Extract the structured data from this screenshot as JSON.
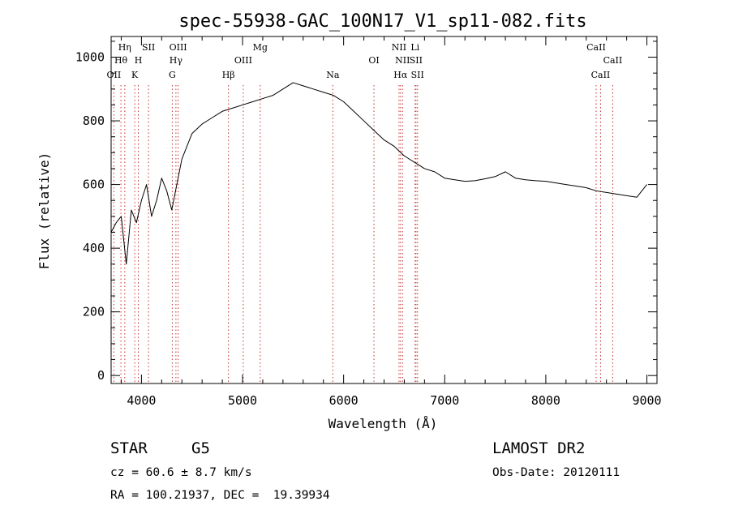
{
  "chart_data": {
    "type": "line",
    "title": "spec-55938-GAC_100N17_V1_sp11-082.fits",
    "xlabel": "Wavelength (Å)",
    "ylabel": "Flux (relative)",
    "xlim": [
      3700,
      9100
    ],
    "ylim": [
      -25,
      1065
    ],
    "x_ticks": [
      4000,
      5000,
      6000,
      7000,
      8000,
      9000
    ],
    "y_ticks": [
      0,
      200,
      400,
      600,
      800,
      1000
    ],
    "grid": false,
    "series": [
      {
        "line_color": "#000000",
        "x": [
          3700,
          3750,
          3800,
          3850,
          3900,
          3950,
          4000,
          4050,
          4100,
          4150,
          4200,
          4250,
          4300,
          4350,
          4400,
          4450,
          4500,
          4600,
          4700,
          4800,
          4900,
          5000,
          5100,
          5200,
          5300,
          5400,
          5500,
          5600,
          5700,
          5800,
          5900,
          6000,
          6100,
          6200,
          6300,
          6400,
          6500,
          6600,
          6700,
          6800,
          6900,
          7000,
          7100,
          7200,
          7300,
          7400,
          7500,
          7600,
          7700,
          7800,
          7900,
          8000,
          8100,
          8200,
          8300,
          8400,
          8500,
          8600,
          8700,
          8800,
          8900,
          9000
        ],
        "y": [
          450,
          480,
          500,
          350,
          520,
          480,
          550,
          600,
          500,
          550,
          620,
          580,
          520,
          600,
          680,
          720,
          760,
          790,
          810,
          830,
          840,
          850,
          860,
          870,
          880,
          900,
          920,
          910,
          900,
          890,
          880,
          860,
          830,
          800,
          770,
          740,
          720,
          690,
          670,
          650,
          640,
          620,
          615,
          610,
          612,
          618,
          625,
          640,
          620,
          615,
          612,
          610,
          605,
          600,
          595,
          590,
          580,
          575,
          570,
          565,
          560,
          600
        ]
      }
    ],
    "line_markers": [
      {
        "label": "Hη",
        "x": 3835,
        "row": 1,
        "color": "#000000"
      },
      {
        "label": "Hθ",
        "x": 3797,
        "row": 2,
        "color": "#000000"
      },
      {
        "label": "OII",
        "x": 3727,
        "row": 3,
        "color": "#000000"
      },
      {
        "label": "SII",
        "x": 4070,
        "row": 1,
        "color": "#000000"
      },
      {
        "label": "H",
        "x": 3969,
        "row": 2,
        "color": "#000000"
      },
      {
        "label": "K",
        "x": 3934,
        "row": 3,
        "color": "#000000"
      },
      {
        "label": "OIII",
        "x": 4363,
        "row": 1,
        "color": "#000000"
      },
      {
        "label": "Hγ",
        "x": 4341,
        "row": 2,
        "color": "#000000"
      },
      {
        "label": "G",
        "x": 4305,
        "row": 3,
        "color": "#000000"
      },
      {
        "label": "Mg",
        "x": 5175,
        "row": 1,
        "color": "#000000"
      },
      {
        "label": "OIII",
        "x": 5007,
        "row": 2,
        "color": "#000000"
      },
      {
        "label": "Hβ",
        "x": 4861,
        "row": 3,
        "color": "#000000"
      },
      {
        "label": "Na",
        "x": 5893,
        "row": 3,
        "color": "#000000"
      },
      {
        "label": "NII",
        "x": 6548,
        "row": 1,
        "color": "#000000"
      },
      {
        "label": "Li",
        "x": 6707,
        "row": 1,
        "color": "#000000"
      },
      {
        "label": "OI",
        "x": 6300,
        "row": 2,
        "color": "#000000"
      },
      {
        "label": "NII",
        "x": 6583,
        "row": 2,
        "color": "#000000"
      },
      {
        "label": "SII",
        "x": 6716,
        "row": 2,
        "color": "#000000"
      },
      {
        "label": "Hα",
        "x": 6563,
        "row": 3,
        "color": "#000000"
      },
      {
        "label": "SII",
        "x": 6731,
        "row": 3,
        "color": "#000000"
      },
      {
        "label": "CaII",
        "x": 8498,
        "row": 1,
        "color": "#000000"
      },
      {
        "label": "CaII",
        "x": 8662,
        "row": 2,
        "color": "#000000"
      },
      {
        "label": "CaII",
        "x": 8542,
        "row": 3,
        "color": "#000000"
      }
    ],
    "marker_line_color": "#c83232"
  },
  "info": {
    "object_class": "STAR",
    "subclass": "G5",
    "survey": "LAMOST DR2",
    "redshift": "cz = 60.6 ± 8.7 km/s",
    "obs_date": "Obs-Date: 20120111",
    "coords": "RA = 100.21937, DEC =  19.39934"
  }
}
